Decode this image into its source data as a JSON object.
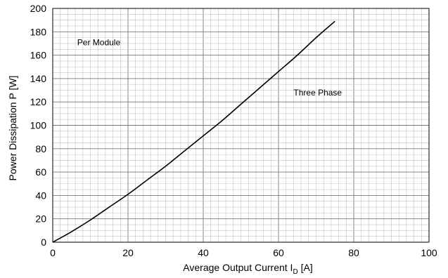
{
  "chart_data": {
    "type": "line",
    "title": "",
    "xlabel_main": "Average Output Current I",
    "xlabel_sub": "D",
    "xlabel_unit": " [A]",
    "ylabel": "Power Dissipation P [W]",
    "xlim": [
      0,
      100
    ],
    "ylim": [
      0,
      200
    ],
    "x_ticks": [
      "0",
      "20",
      "40",
      "60",
      "80",
      "100"
    ],
    "y_ticks": [
      "0",
      "20",
      "40",
      "60",
      "80",
      "100",
      "120",
      "140",
      "160",
      "180",
      "200"
    ],
    "grid": true,
    "annotations": [
      "Per Module",
      "Three Phase"
    ],
    "series": [
      {
        "name": "",
        "color": "#000000",
        "x": [
          0,
          5,
          10,
          15,
          20,
          25,
          30,
          35,
          40,
          45,
          50,
          55,
          60,
          65,
          70,
          75
        ],
        "y": [
          0,
          9,
          19,
          30,
          41,
          53,
          65,
          78,
          91,
          104,
          118,
          132,
          146,
          160,
          175,
          189
        ]
      }
    ]
  }
}
